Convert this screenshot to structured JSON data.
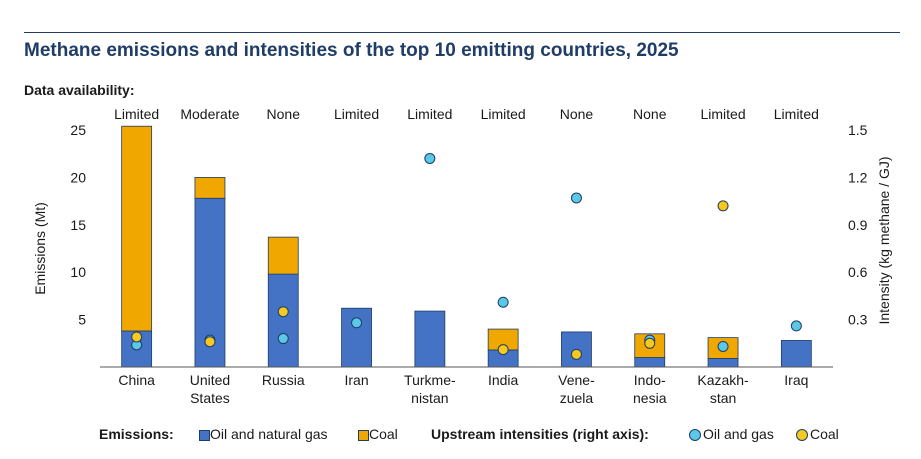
{
  "title": "Methane emissions and intensities of the top 10 emitting countries, 2025",
  "availability_label": "Data availability:",
  "colors": {
    "oil_gas_bar": "#4472c4",
    "coal_bar": "#f0a800",
    "oil_gas_dot": "#5bc8e8",
    "coal_dot": "#f7c81e",
    "outline": "#1f3d66",
    "title": "#1f3d66"
  },
  "legend": {
    "emissions_label": "Emissions:",
    "intensity_label": "Upstream intensities (right axis):",
    "oil_gas": "Oil and natural gas",
    "coal": "Coal",
    "oil_gas_dot": "Oil and gas",
    "coal_dot": "Coal"
  },
  "chart_data": {
    "type": "bar",
    "stacked": true,
    "categories": [
      [
        "China"
      ],
      [
        "United",
        "States"
      ],
      [
        "Russia"
      ],
      [
        "Iran"
      ],
      [
        "Turkme-",
        "nistan"
      ],
      [
        "India"
      ],
      [
        "Vene-",
        "zuela"
      ],
      [
        "Indo-",
        "nesia"
      ],
      [
        "Kazakh-",
        "stan"
      ],
      [
        "Iraq"
      ]
    ],
    "availability": [
      "Limited",
      "Moderate",
      "None",
      "Limited",
      "Limited",
      "Limited",
      "None",
      "None",
      "Limited",
      "Limited"
    ],
    "ylabel": "Emissions (Mt)",
    "y2label": "Intensity (kg methane / GJ)",
    "ylim": [
      0,
      25
    ],
    "y2lim": [
      0,
      1.5
    ],
    "yticks": [
      5,
      10,
      15,
      20,
      25
    ],
    "y2ticks": [
      "0.3",
      "0.6",
      "0.9",
      "1.2",
      "1.5"
    ],
    "series": [
      {
        "name": "Oil and natural gas",
        "axis": "left",
        "values": [
          3.8,
          17.8,
          9.8,
          6.2,
          5.9,
          1.8,
          3.7,
          1.0,
          0.9,
          2.8
        ]
      },
      {
        "name": "Coal",
        "axis": "left",
        "values": [
          21.6,
          2.2,
          3.9,
          0,
          0,
          2.2,
          0,
          2.5,
          2.2,
          0
        ]
      }
    ],
    "intensity_series": [
      {
        "name": "Oil and gas",
        "axis": "right",
        "values": [
          0.14,
          0.17,
          0.18,
          0.28,
          1.32,
          0.41,
          1.07,
          0.17,
          0.13,
          0.26
        ]
      },
      {
        "name": "Coal",
        "axis": "right",
        "values": [
          0.19,
          0.16,
          0.35,
          null,
          null,
          0.11,
          0.08,
          0.15,
          1.02,
          null
        ]
      }
    ]
  }
}
